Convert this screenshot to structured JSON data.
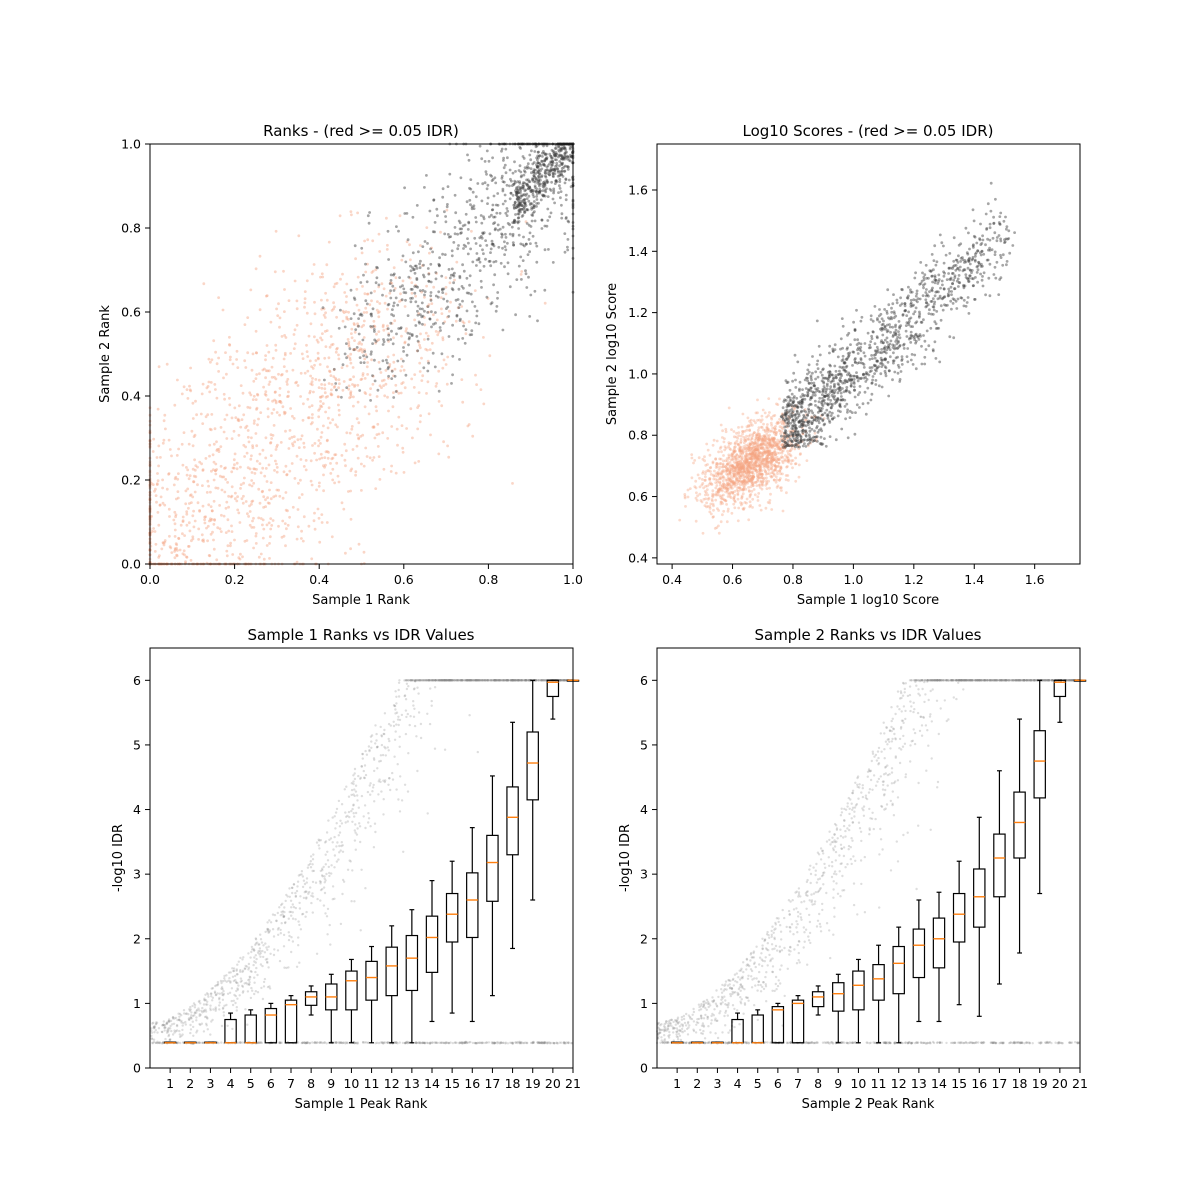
{
  "chart_data": [
    {
      "type": "scatter",
      "title": "Ranks - (red >= 0.05 IDR)",
      "xlabel": "Sample 1 Rank",
      "ylabel": "Sample 2 Rank",
      "xlim": [
        0,
        1
      ],
      "ylim": [
        0,
        1
      ],
      "xticks": [
        0.0,
        0.2,
        0.4,
        0.6,
        0.8,
        1.0
      ],
      "yticks": [
        0.0,
        0.2,
        0.4,
        0.6,
        0.8,
        1.0
      ],
      "tick_format": 1,
      "grid": false,
      "colors": {
        "red_series": "#f4a582",
        "black_series": "#3a3a3a"
      }
    },
    {
      "type": "scatter",
      "title": "Log10 Scores - (red >= 0.05 IDR)",
      "xlabel": "Sample 1 log10 Score",
      "ylabel": "Sample 2 log10 Score",
      "xlim": [
        0.35,
        1.75
      ],
      "ylim": [
        0.38,
        1.75
      ],
      "xticks": [
        0.4,
        0.6,
        0.8,
        1.0,
        1.2,
        1.4,
        1.6
      ],
      "yticks": [
        0.4,
        0.6,
        0.8,
        1.0,
        1.2,
        1.4,
        1.6
      ],
      "tick_format": 1,
      "grid": false,
      "colors": {
        "red_series": "#f4a582",
        "black_series": "#3a3a3a"
      }
    },
    {
      "type": "box",
      "title": "Sample 1 Ranks vs IDR Values",
      "xlabel": "Sample 1 Peak Rank",
      "ylabel": "-log10 IDR",
      "xlim": [
        0,
        21
      ],
      "ylim": [
        0,
        6.5
      ],
      "xticks": [
        1,
        2,
        3,
        4,
        5,
        6,
        7,
        8,
        9,
        10,
        11,
        12,
        13,
        14,
        15,
        16,
        17,
        18,
        19,
        20,
        21
      ],
      "yticks": [
        0,
        1,
        2,
        3,
        4,
        5,
        6
      ],
      "tick_format": 0,
      "colors": {
        "box": "#000000",
        "median": "#ff7f0e",
        "points": "#888888"
      },
      "boxes": [
        {
          "pos": 1,
          "q1": 0.39,
          "med": 0.39,
          "q3": 0.4,
          "lo": 0.39,
          "hi": 0.4
        },
        {
          "pos": 2,
          "q1": 0.39,
          "med": 0.39,
          "q3": 0.4,
          "lo": 0.39,
          "hi": 0.4
        },
        {
          "pos": 3,
          "q1": 0.39,
          "med": 0.39,
          "q3": 0.4,
          "lo": 0.39,
          "hi": 0.4
        },
        {
          "pos": 4,
          "q1": 0.39,
          "med": 0.39,
          "q3": 0.75,
          "lo": 0.39,
          "hi": 0.85
        },
        {
          "pos": 5,
          "q1": 0.39,
          "med": 0.39,
          "q3": 0.82,
          "lo": 0.39,
          "hi": 0.9
        },
        {
          "pos": 6,
          "q1": 0.39,
          "med": 0.82,
          "q3": 0.92,
          "lo": 0.39,
          "hi": 1.0
        },
        {
          "pos": 7,
          "q1": 0.39,
          "med": 0.98,
          "q3": 1.05,
          "lo": 0.39,
          "hi": 1.12
        },
        {
          "pos": 8,
          "q1": 0.97,
          "med": 1.1,
          "q3": 1.18,
          "lo": 0.82,
          "hi": 1.27
        },
        {
          "pos": 9,
          "q1": 0.9,
          "med": 1.1,
          "q3": 1.3,
          "lo": 0.39,
          "hi": 1.45
        },
        {
          "pos": 10,
          "q1": 0.9,
          "med": 1.35,
          "q3": 1.5,
          "lo": 0.39,
          "hi": 1.68
        },
        {
          "pos": 11,
          "q1": 1.05,
          "med": 1.4,
          "q3": 1.65,
          "lo": 0.39,
          "hi": 1.88
        },
        {
          "pos": 12,
          "q1": 1.12,
          "med": 1.58,
          "q3": 1.87,
          "lo": 0.39,
          "hi": 2.2
        },
        {
          "pos": 13,
          "q1": 1.2,
          "med": 1.7,
          "q3": 2.05,
          "lo": 0.39,
          "hi": 2.45
        },
        {
          "pos": 14,
          "q1": 1.48,
          "med": 2.02,
          "q3": 2.35,
          "lo": 0.72,
          "hi": 2.9
        },
        {
          "pos": 15,
          "q1": 1.95,
          "med": 2.38,
          "q3": 2.7,
          "lo": 0.85,
          "hi": 3.2
        },
        {
          "pos": 16,
          "q1": 2.02,
          "med": 2.6,
          "q3": 3.02,
          "lo": 0.72,
          "hi": 3.72
        },
        {
          "pos": 17,
          "q1": 2.58,
          "med": 3.18,
          "q3": 3.6,
          "lo": 1.12,
          "hi": 4.52
        },
        {
          "pos": 18,
          "q1": 3.3,
          "med": 3.88,
          "q3": 4.35,
          "lo": 1.85,
          "hi": 5.35
        },
        {
          "pos": 19,
          "q1": 4.15,
          "med": 4.72,
          "q3": 5.2,
          "lo": 2.6,
          "hi": 6.0
        },
        {
          "pos": 20,
          "q1": 5.75,
          "med": 5.97,
          "q3": 6.0,
          "lo": 5.4,
          "hi": 6.0
        },
        {
          "pos": 21,
          "q1": 6.0,
          "med": 6.0,
          "q3": 6.0,
          "lo": 6.0,
          "hi": 6.0
        }
      ]
    },
    {
      "type": "box",
      "title": "Sample 2 Ranks vs IDR Values",
      "xlabel": "Sample 2 Peak Rank",
      "ylabel": "-log10 IDR",
      "xlim": [
        0,
        21
      ],
      "ylim": [
        0,
        6.5
      ],
      "xticks": [
        1,
        2,
        3,
        4,
        5,
        6,
        7,
        8,
        9,
        10,
        11,
        12,
        13,
        14,
        15,
        16,
        17,
        18,
        19,
        20,
        21
      ],
      "yticks": [
        0,
        1,
        2,
        3,
        4,
        5,
        6
      ],
      "tick_format": 0,
      "colors": {
        "box": "#000000",
        "median": "#ff7f0e",
        "points": "#888888"
      },
      "boxes": [
        {
          "pos": 1,
          "q1": 0.39,
          "med": 0.39,
          "q3": 0.4,
          "lo": 0.39,
          "hi": 0.4
        },
        {
          "pos": 2,
          "q1": 0.39,
          "med": 0.39,
          "q3": 0.4,
          "lo": 0.39,
          "hi": 0.4
        },
        {
          "pos": 3,
          "q1": 0.39,
          "med": 0.39,
          "q3": 0.4,
          "lo": 0.39,
          "hi": 0.4
        },
        {
          "pos": 4,
          "q1": 0.39,
          "med": 0.39,
          "q3": 0.75,
          "lo": 0.39,
          "hi": 0.85
        },
        {
          "pos": 5,
          "q1": 0.39,
          "med": 0.39,
          "q3": 0.82,
          "lo": 0.39,
          "hi": 0.9
        },
        {
          "pos": 6,
          "q1": 0.39,
          "med": 0.9,
          "q3": 0.95,
          "lo": 0.39,
          "hi": 1.0
        },
        {
          "pos": 7,
          "q1": 0.39,
          "med": 1.0,
          "q3": 1.05,
          "lo": 0.39,
          "hi": 1.12
        },
        {
          "pos": 8,
          "q1": 0.95,
          "med": 1.1,
          "q3": 1.18,
          "lo": 0.82,
          "hi": 1.27
        },
        {
          "pos": 9,
          "q1": 0.88,
          "med": 1.15,
          "q3": 1.32,
          "lo": 0.39,
          "hi": 1.45
        },
        {
          "pos": 10,
          "q1": 0.9,
          "med": 1.28,
          "q3": 1.5,
          "lo": 0.39,
          "hi": 1.68
        },
        {
          "pos": 11,
          "q1": 1.05,
          "med": 1.38,
          "q3": 1.6,
          "lo": 0.39,
          "hi": 1.9
        },
        {
          "pos": 12,
          "q1": 1.15,
          "med": 1.62,
          "q3": 1.88,
          "lo": 0.39,
          "hi": 2.18
        },
        {
          "pos": 13,
          "q1": 1.4,
          "med": 1.9,
          "q3": 2.15,
          "lo": 0.72,
          "hi": 2.6
        },
        {
          "pos": 14,
          "q1": 1.55,
          "med": 2.0,
          "q3": 2.32,
          "lo": 0.72,
          "hi": 2.72
        },
        {
          "pos": 15,
          "q1": 1.95,
          "med": 2.38,
          "q3": 2.7,
          "lo": 0.98,
          "hi": 3.2
        },
        {
          "pos": 16,
          "q1": 2.18,
          "med": 2.65,
          "q3": 3.08,
          "lo": 0.8,
          "hi": 3.88
        },
        {
          "pos": 17,
          "q1": 2.65,
          "med": 3.25,
          "q3": 3.62,
          "lo": 1.3,
          "hi": 4.6
        },
        {
          "pos": 18,
          "q1": 3.25,
          "med": 3.8,
          "q3": 4.27,
          "lo": 1.78,
          "hi": 5.4
        },
        {
          "pos": 19,
          "q1": 4.18,
          "med": 4.75,
          "q3": 5.22,
          "lo": 2.7,
          "hi": 6.0
        },
        {
          "pos": 20,
          "q1": 5.75,
          "med": 5.97,
          "q3": 6.0,
          "lo": 5.35,
          "hi": 6.0
        },
        {
          "pos": 21,
          "q1": 6.0,
          "med": 6.0,
          "q3": 6.0,
          "lo": 6.0,
          "hi": 6.0
        }
      ]
    }
  ]
}
